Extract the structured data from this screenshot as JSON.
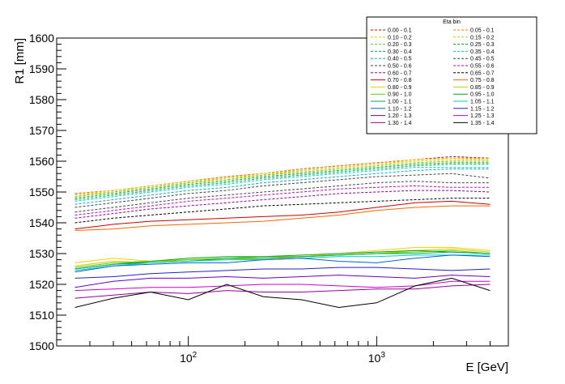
{
  "chart_data": {
    "type": "line",
    "title": "",
    "xlabel": "E [GeV]",
    "ylabel": "R1 [mm]",
    "x_scale": "log",
    "xlim": [
      20,
      5000
    ],
    "ylim": [
      1500,
      1600
    ],
    "yticks": [
      1500,
      1510,
      1520,
      1530,
      1540,
      1550,
      1560,
      1570,
      1580,
      1590,
      1600
    ],
    "xticks": [
      {
        "value": 100,
        "label": "10",
        "exp": "2"
      },
      {
        "value": 1000,
        "label": "10",
        "exp": "3"
      }
    ],
    "grid": false,
    "legend": {
      "title": "Eta bin",
      "placement": "top-right",
      "columns": 2
    },
    "x": [
      25,
      40,
      63,
      100,
      160,
      250,
      400,
      630,
      1000,
      1600,
      2500,
      4000
    ],
    "series": [
      {
        "name": "0.00 - 0.1",
        "color": "#cc0000",
        "dash": true,
        "values": [
          1549.5,
          1550.5,
          1552.0,
          1553.5,
          1555.0,
          1556.0,
          1557.5,
          1558.5,
          1559.5,
          1560.5,
          1561.5,
          1561.0
        ]
      },
      {
        "name": "0.05 - 0.1",
        "color": "#ff8000",
        "dash": true,
        "values": [
          1549.5,
          1550.5,
          1552.0,
          1553.5,
          1555.0,
          1556.0,
          1557.5,
          1558.5,
          1559.5,
          1560.5,
          1561.0,
          1561.0
        ]
      },
      {
        "name": "0.10 - 0.2",
        "color": "#ffcc00",
        "dash": true,
        "values": [
          1549.0,
          1550.5,
          1552.0,
          1553.5,
          1554.5,
          1556.0,
          1557.0,
          1558.0,
          1559.0,
          1560.5,
          1561.0,
          1560.5
        ]
      },
      {
        "name": "0.15 - 0.2",
        "color": "#cccc00",
        "dash": true,
        "values": [
          1549.0,
          1550.0,
          1551.5,
          1553.0,
          1554.5,
          1555.5,
          1557.0,
          1558.0,
          1559.0,
          1560.0,
          1560.5,
          1560.5
        ]
      },
      {
        "name": "0.20 - 0.3",
        "color": "#66cc00",
        "dash": true,
        "values": [
          1548.5,
          1550.0,
          1551.5,
          1553.0,
          1554.0,
          1555.5,
          1556.5,
          1557.5,
          1558.5,
          1559.5,
          1560.0,
          1560.0
        ]
      },
      {
        "name": "0.25 - 0.3",
        "color": "#00aa00",
        "dash": true,
        "values": [
          1548.0,
          1549.5,
          1551.0,
          1552.5,
          1553.5,
          1555.0,
          1556.0,
          1557.0,
          1558.0,
          1559.0,
          1559.5,
          1559.5
        ]
      },
      {
        "name": "0.30 - 0.4",
        "color": "#00aa66",
        "dash": true,
        "values": [
          1547.5,
          1549.0,
          1550.5,
          1552.0,
          1553.0,
          1554.5,
          1555.5,
          1556.5,
          1557.5,
          1558.5,
          1559.0,
          1559.0
        ]
      },
      {
        "name": "0.35 - 0.4",
        "color": "#00cccc",
        "dash": true,
        "values": [
          1547.0,
          1548.5,
          1550.0,
          1551.5,
          1552.5,
          1554.0,
          1555.0,
          1556.0,
          1557.0,
          1558.0,
          1558.0,
          1558.0
        ]
      },
      {
        "name": "0.40 - 0.5",
        "color": "#00aacc",
        "dash": true,
        "values": [
          1546.0,
          1547.5,
          1549.0,
          1550.5,
          1551.5,
          1553.0,
          1554.0,
          1555.0,
          1556.0,
          1557.0,
          1557.5,
          1557.5
        ]
      },
      {
        "name": "0.45 - 0.5",
        "color": "#444444",
        "dash": true,
        "values": [
          1545.0,
          1546.5,
          1548.0,
          1549.5,
          1550.5,
          1552.0,
          1553.0,
          1554.0,
          1555.0,
          1555.5,
          1556.0,
          1554.5
        ]
      },
      {
        "name": "0.50 - 0.6",
        "color": "#444444",
        "dash": true,
        "values": [
          1543.5,
          1545.0,
          1546.5,
          1548.0,
          1549.0,
          1550.0,
          1551.0,
          1552.0,
          1553.0,
          1553.5,
          1553.0,
          1553.0
        ]
      },
      {
        "name": "0.55 - 0.6",
        "color": "#cc00cc",
        "dash": true,
        "values": [
          1542.5,
          1544.0,
          1545.5,
          1547.0,
          1548.0,
          1549.0,
          1550.0,
          1551.0,
          1551.5,
          1552.0,
          1551.5,
          1551.5
        ]
      },
      {
        "name": "0.60 - 0.7",
        "color": "#990099",
        "dash": true,
        "values": [
          1541.5,
          1543.0,
          1544.5,
          1545.5,
          1546.5,
          1547.5,
          1548.5,
          1549.5,
          1550.0,
          1550.5,
          1550.5,
          1550.0
        ]
      },
      {
        "name": "0.65 - 0.7",
        "color": "#000000",
        "dash": true,
        "values": [
          1540.0,
          1541.5,
          1542.5,
          1543.5,
          1544.5,
          1545.5,
          1546.0,
          1546.5,
          1547.0,
          1547.5,
          1548.0,
          1548.0
        ]
      },
      {
        "name": "0.70 - 0.8",
        "color": "#cc0000",
        "dash": false,
        "values": [
          1538.0,
          1539.5,
          1540.5,
          1541.0,
          1541.5,
          1542.0,
          1542.5,
          1543.5,
          1545.0,
          1546.5,
          1547.0,
          1546.0
        ]
      },
      {
        "name": "0.75 - 0.8",
        "color": "#ff6600",
        "dash": false,
        "values": [
          1537.5,
          1538.0,
          1539.0,
          1539.5,
          1540.0,
          1540.5,
          1541.5,
          1542.5,
          1544.0,
          1545.0,
          1545.5,
          1545.5
        ]
      },
      {
        "name": "0.80 - 0.9",
        "color": "#ffcc00",
        "dash": false,
        "values": [
          1527.0,
          1528.5,
          1527.5,
          1528.0,
          1528.5,
          1528.0,
          1529.0,
          1530.0,
          1531.0,
          1532.0,
          1532.0,
          1531.0
        ]
      },
      {
        "name": "0.85 - 0.9",
        "color": "#cccc00",
        "dash": false,
        "values": [
          1526.0,
          1527.5,
          1527.0,
          1528.0,
          1528.0,
          1528.5,
          1529.0,
          1529.5,
          1530.0,
          1531.0,
          1531.5,
          1530.5
        ]
      },
      {
        "name": "0.90 - 1.0",
        "color": "#66cc00",
        "dash": false,
        "values": [
          1525.5,
          1527.0,
          1527.5,
          1528.0,
          1528.5,
          1529.0,
          1529.0,
          1529.5,
          1530.0,
          1530.5,
          1531.0,
          1530.0
        ]
      },
      {
        "name": "0.95 - 1.0",
        "color": "#00aa00",
        "dash": false,
        "values": [
          1525.0,
          1526.5,
          1527.5,
          1528.5,
          1529.0,
          1529.0,
          1529.5,
          1530.0,
          1530.5,
          1531.0,
          1530.5,
          1530.0
        ]
      },
      {
        "name": "1.00 - 1.1",
        "color": "#00aa66",
        "dash": false,
        "values": [
          1525.0,
          1526.5,
          1527.0,
          1527.5,
          1528.5,
          1528.5,
          1529.0,
          1529.5,
          1530.0,
          1530.0,
          1530.5,
          1530.0
        ]
      },
      {
        "name": "1.05 - 1.1",
        "color": "#00cccc",
        "dash": false,
        "values": [
          1524.5,
          1526.0,
          1527.0,
          1527.5,
          1528.0,
          1528.0,
          1528.5,
          1529.0,
          1529.0,
          1529.5,
          1529.5,
          1529.5
        ]
      },
      {
        "name": "1.10 - 1.2",
        "color": "#0066cc",
        "dash": false,
        "values": [
          1524.0,
          1526.0,
          1526.5,
          1527.0,
          1527.0,
          1528.0,
          1528.5,
          1527.5,
          1527.0,
          1528.5,
          1529.5,
          1529.0
        ]
      },
      {
        "name": "1.15 - 1.2",
        "color": "#2222cc",
        "dash": false,
        "values": [
          1522.0,
          1522.5,
          1523.5,
          1524.0,
          1524.5,
          1525.0,
          1525.0,
          1525.5,
          1525.5,
          1525.0,
          1524.5,
          1525.0
        ]
      },
      {
        "name": "1.20 - 1.3",
        "color": "#6600cc",
        "dash": false,
        "values": [
          1519.0,
          1521.0,
          1522.0,
          1522.0,
          1522.5,
          1522.0,
          1522.5,
          1523.0,
          1522.5,
          1522.0,
          1523.0,
          1522.5
        ]
      },
      {
        "name": "1.25 - 1.3",
        "color": "#cc00cc",
        "dash": false,
        "values": [
          1518.0,
          1518.5,
          1519.0,
          1519.0,
          1519.5,
          1520.0,
          1520.0,
          1519.5,
          1519.0,
          1519.5,
          1521.0,
          1521.0
        ]
      },
      {
        "name": "1.30 - 1.4",
        "color": "#990099",
        "dash": false,
        "values": [
          1515.5,
          1516.5,
          1517.5,
          1517.0,
          1518.0,
          1517.5,
          1517.5,
          1518.0,
          1518.5,
          1518.5,
          1519.5,
          1520.0
        ]
      },
      {
        "name": "1.35 - 1.4",
        "color": "#000000",
        "dash": false,
        "values": [
          1512.5,
          1515.5,
          1517.5,
          1515.0,
          1520.0,
          1516.0,
          1515.0,
          1512.5,
          1514.0,
          1519.5,
          1522.0,
          1518.0
        ]
      }
    ]
  }
}
